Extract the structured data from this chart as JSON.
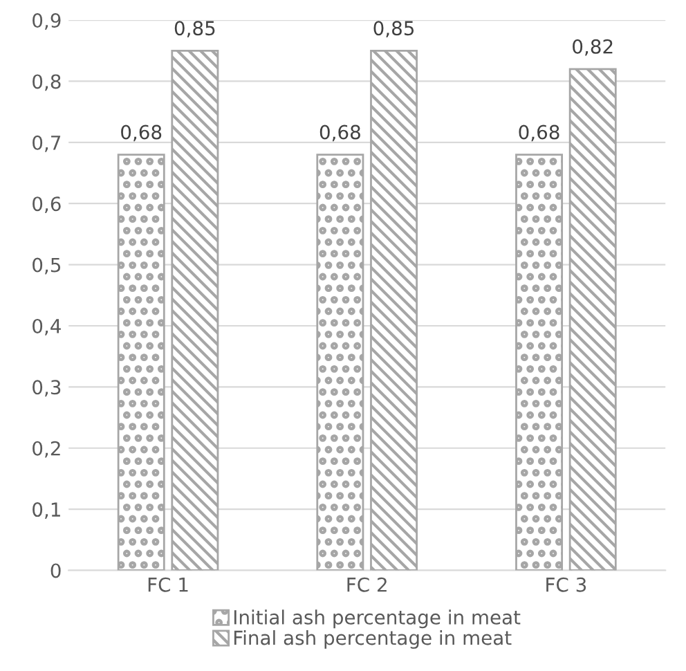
{
  "chart_data": {
    "type": "bar",
    "categories": [
      "FC 1",
      "FC 2",
      "FC 3"
    ],
    "series": [
      {
        "name": "Initial ash percentage in meat",
        "color": "#a6a6a6",
        "values": [
          0.68,
          0.68,
          0.68
        ],
        "value_labels": [
          "0,68",
          "0,68",
          "0,68"
        ]
      },
      {
        "name": "Final ash percentage in meat",
        "color": "#a6a6a6",
        "values": [
          0.85,
          0.85,
          0.82
        ],
        "value_labels": [
          "0,85",
          "0,85",
          "0,82"
        ]
      }
    ],
    "ylim": [
      0,
      0.9
    ],
    "yticks": [
      0,
      {
        "value": 0.1,
        "label": "0,1"
      },
      {
        "value": 0.2,
        "label": "0,2"
      },
      {
        "value": 0.3,
        "label": "0,3"
      },
      {
        "value": 0.4,
        "label": "0,4"
      },
      {
        "value": 0.5,
        "label": "0,5"
      },
      {
        "value": 0.6,
        "label": "0,6"
      },
      {
        "value": 0.7,
        "label": "0,7"
      },
      {
        "value": 0.8,
        "label": "0,8"
      },
      {
        "value": 0.9,
        "label": "0,9"
      }
    ],
    "grid": "y",
    "legend": "bottom"
  }
}
